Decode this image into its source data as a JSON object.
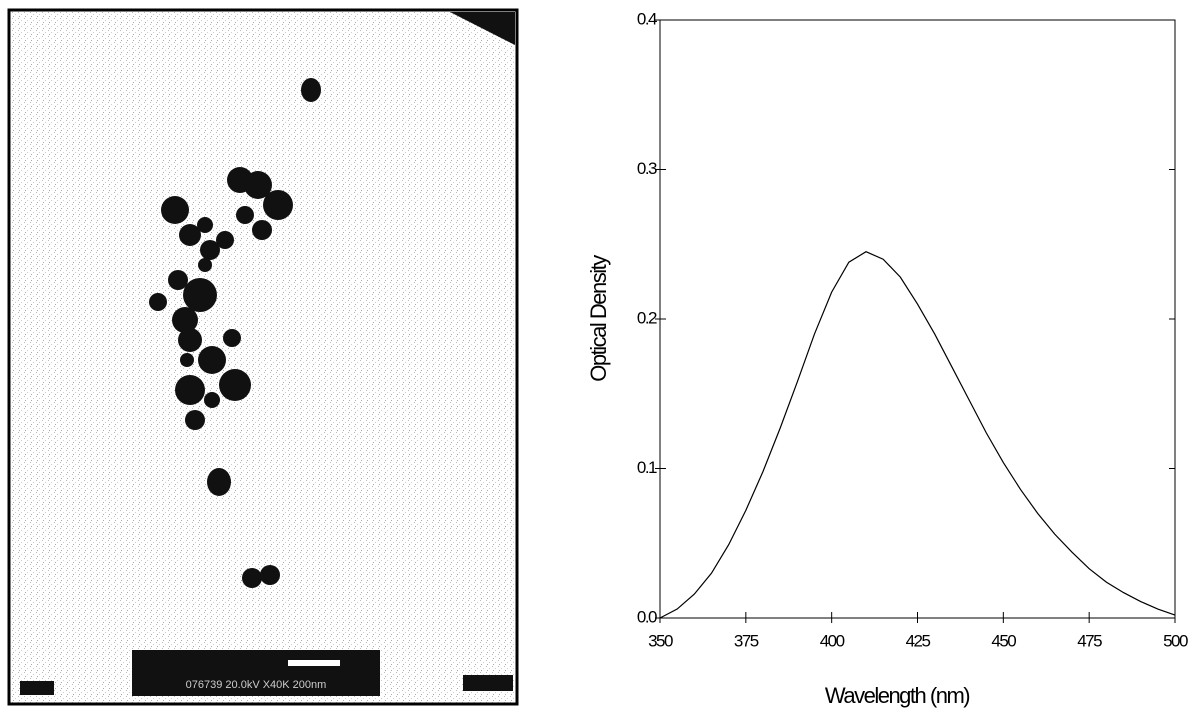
{
  "image_label": "076739 20.0kV X40K 200nm",
  "chart_data": {
    "type": "line",
    "x_label": "Wavelength (nm)",
    "y_label": "Optical Density",
    "x": [
      350,
      355,
      360,
      365,
      370,
      375,
      380,
      385,
      390,
      395,
      400,
      405,
      410,
      415,
      420,
      425,
      430,
      435,
      440,
      445,
      450,
      455,
      460,
      465,
      470,
      475,
      480,
      485,
      490,
      495,
      500
    ],
    "series": [
      {
        "name": "Optical Density",
        "color": "#000000",
        "values": [
          0.0,
          0.006,
          0.016,
          0.03,
          0.049,
          0.072,
          0.098,
          0.127,
          0.158,
          0.19,
          0.218,
          0.238,
          0.245,
          0.24,
          0.228,
          0.21,
          0.19,
          0.168,
          0.146,
          0.124,
          0.104,
          0.086,
          0.07,
          0.056,
          0.044,
          0.033,
          0.024,
          0.017,
          0.011,
          0.006,
          0.002
        ]
      }
    ],
    "xlim": [
      350,
      500
    ],
    "xticks": [
      350,
      375,
      400,
      425,
      450,
      475,
      500
    ],
    "ylim": [
      0,
      0.4
    ],
    "yticks": [
      {
        "value": 0,
        "label": "0.0"
      },
      0.1,
      0.2,
      0.3,
      0.4
    ]
  }
}
